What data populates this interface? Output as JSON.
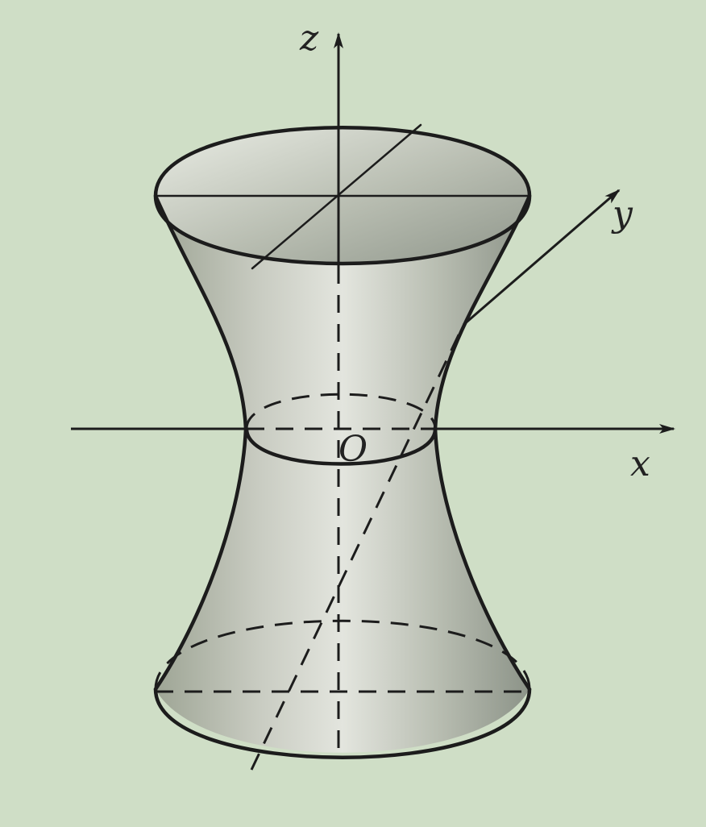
{
  "figure": {
    "type": "hyperboloid of one sheet",
    "labels": {
      "z": "z",
      "y": "y",
      "x": "x",
      "origin": "O"
    },
    "colors": {
      "background": "#cfdec6",
      "surface_light": "#e8ebe3",
      "surface_mid": "#c4c8bd",
      "surface_dark": "#8f968a",
      "inner_top": "#aab0a4",
      "ink": "#1c1c1c"
    }
  }
}
